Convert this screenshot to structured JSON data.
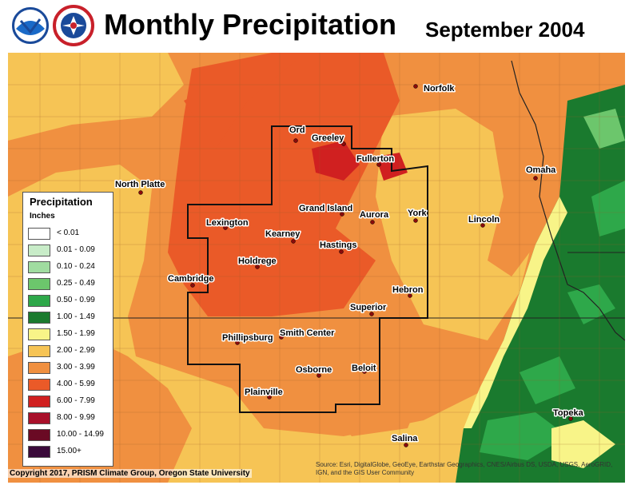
{
  "header": {
    "title": "Monthly Precipitation",
    "subtitle": "September 2004",
    "logos": [
      "noaa-logo",
      "nws-logo"
    ]
  },
  "legend": {
    "title": "Precipitation",
    "units": "Inches",
    "items": [
      {
        "label": "< 0.01",
        "color": "#ffffff"
      },
      {
        "label": "0.01 - 0.09",
        "color": "#c8ecc8"
      },
      {
        "label": "0.10 - 0.24",
        "color": "#a0dca0"
      },
      {
        "label": "0.25 - 0.49",
        "color": "#6cc66c"
      },
      {
        "label": "0.50 - 0.99",
        "color": "#2ea84a"
      },
      {
        "label": "1.00 - 1.49",
        "color": "#1a7a2e"
      },
      {
        "label": "1.50 - 1.99",
        "color": "#f8f488"
      },
      {
        "label": "2.00 - 2.99",
        "color": "#f6c455"
      },
      {
        "label": "3.00 - 3.99",
        "color": "#f09040"
      },
      {
        "label": "4.00 - 5.99",
        "color": "#ea5a28"
      },
      {
        "label": "6.00 - 7.99",
        "color": "#d02020"
      },
      {
        "label": "8.00 - 9.99",
        "color": "#a8102a"
      },
      {
        "label": "10.00 - 14.99",
        "color": "#6a0a24"
      },
      {
        "label": "15.00+",
        "color": "#3a0a3a"
      }
    ]
  },
  "cities": [
    {
      "name": "Norfolk"
    },
    {
      "name": "Ord"
    },
    {
      "name": "Greeley"
    },
    {
      "name": "Fullerton"
    },
    {
      "name": "Omaha"
    },
    {
      "name": "North Platte"
    },
    {
      "name": "Grand Island"
    },
    {
      "name": "Aurora"
    },
    {
      "name": "York"
    },
    {
      "name": "Lincoln"
    },
    {
      "name": "Lexington"
    },
    {
      "name": "Kearney"
    },
    {
      "name": "Hastings"
    },
    {
      "name": "Holdrege"
    },
    {
      "name": "Cambridge"
    },
    {
      "name": "Hebron"
    },
    {
      "name": "Superior"
    },
    {
      "name": "Phillipsburg"
    },
    {
      "name": "Smith Center"
    },
    {
      "name": "Osborne"
    },
    {
      "name": "Beloit"
    },
    {
      "name": "Plainville"
    },
    {
      "name": "Topeka"
    },
    {
      "name": "Salina"
    }
  ],
  "footer": {
    "copyright": "Copyright 2017, PRISM Climate Group, Oregon State University",
    "source": "Source: Esri, DigitalGlobe, GeoEye, Earthstar Geographics, CNES/Airbus DS, USDA, USGS, AeroGRID, IGN, and the GIS User Community"
  }
}
